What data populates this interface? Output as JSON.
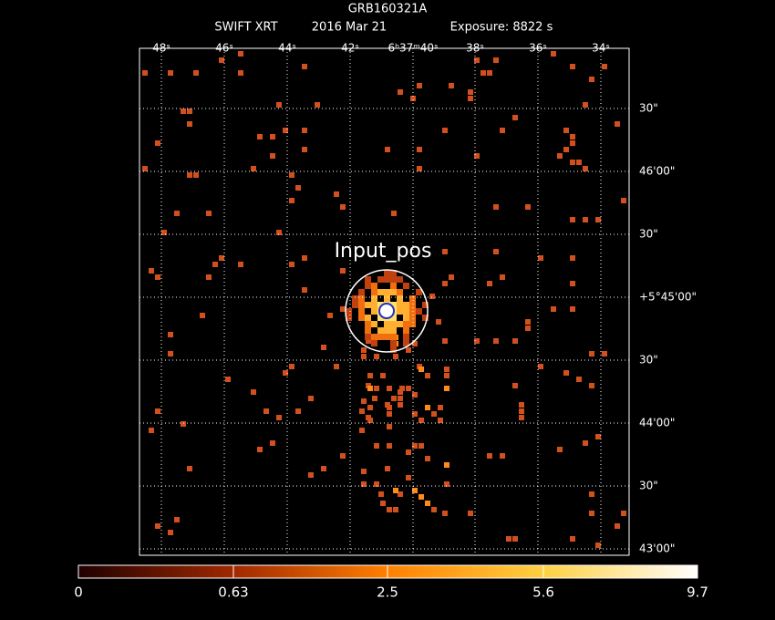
{
  "header": {
    "title": "GRB160321A",
    "subtitle": [
      "SWIFT XRT",
      "2016 Mar 21",
      "Exposure: 8822 s"
    ]
  },
  "top_axis_labels": [
    "48ˢ",
    "46ˢ",
    "44ˢ",
    "42ˢ",
    "6ʰ37ᵐ40ˢ",
    "38ˢ",
    "36ˢ",
    "34ˢ"
  ],
  "right_axis_labels": [
    "30\"",
    "46'00\"",
    "30\"",
    "+5°45'00\"",
    "30\"",
    "44'00\"",
    "30\"",
    "43'00\""
  ],
  "source_label": "Input_pos",
  "colorbar_labels": [
    "0",
    "0.63",
    "2.5",
    "5.6",
    "9.7"
  ]
}
